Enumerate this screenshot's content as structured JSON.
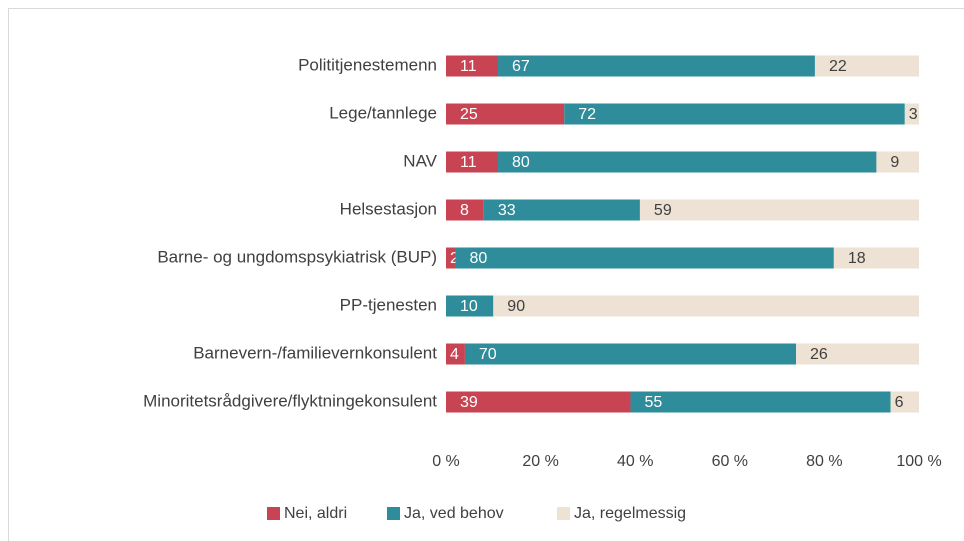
{
  "chart_data": {
    "type": "stacked-bar-horizontal",
    "categories": [
      "Polititjenestemenn",
      "Lege/tannlege",
      "NAV",
      "Helsestasjon",
      "Barne- og ungdomspsykiatrisk (BUP)",
      "PP-tjenesten",
      "Barnevern-/familievernkonsulent",
      "Minoritetsrådgivere/flyktningekonsulent"
    ],
    "series": [
      {
        "name": "Nei, aldri",
        "color": "#c94452",
        "values": [
          11,
          25,
          11,
          8,
          2,
          0,
          4,
          39
        ]
      },
      {
        "name": "Ja, ved behov",
        "color": "#2e8c9b",
        "values": [
          67,
          72,
          80,
          33,
          80,
          10,
          70,
          55
        ]
      },
      {
        "name": "Ja, regelmessig",
        "color": "#ede2d3",
        "values": [
          22,
          3,
          9,
          59,
          18,
          90,
          26,
          6
        ]
      }
    ],
    "xlim": [
      0,
      100
    ],
    "xticks": [
      {
        "value": 0,
        "label": "0 %"
      },
      {
        "value": 20,
        "label": "20 %"
      },
      {
        "value": 40,
        "label": "40 %"
      },
      {
        "value": 60,
        "label": "60 %"
      },
      {
        "value": 80,
        "label": "80 %"
      },
      {
        "value": 100,
        "label": "100 %"
      }
    ],
    "grid": false,
    "legend": "bottom"
  }
}
